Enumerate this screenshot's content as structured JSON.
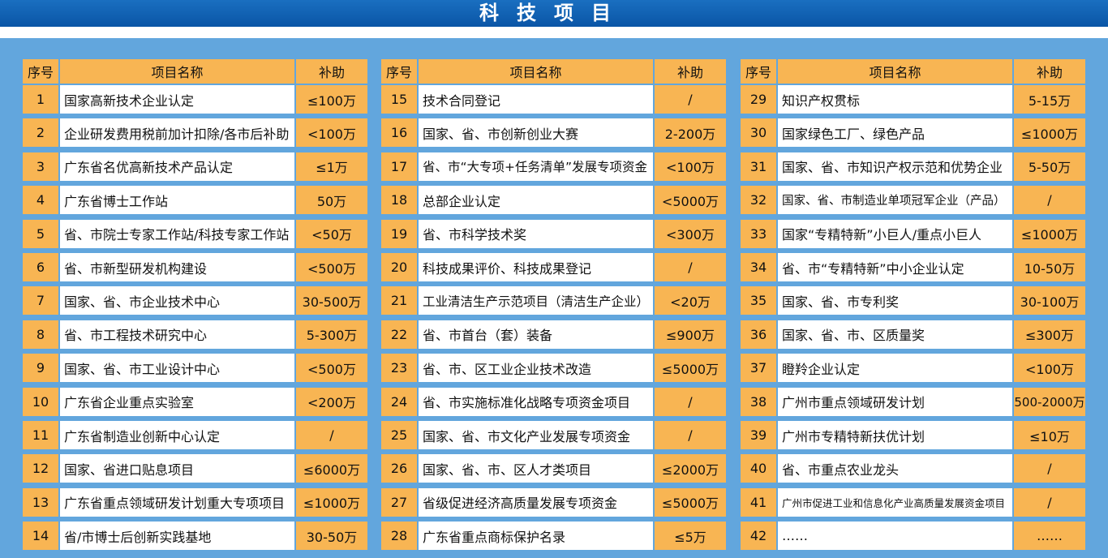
{
  "header": {
    "title": "科技项目"
  },
  "tables": [
    {
      "header": [
        "序号",
        "项目名称",
        "补助"
      ],
      "rows": [
        [
          "1",
          "国家高新技术企业认定",
          "≤100万"
        ],
        [
          "2",
          "企业研发费用税前加计扣除/各市后补助",
          "<100万"
        ],
        [
          "3",
          "广东省名优高新技术产品认定",
          "≤1万"
        ],
        [
          "4",
          "广东省博士工作站",
          "50万"
        ],
        [
          "5",
          "省、市院士专家工作站/科技专家工作站",
          "<50万"
        ],
        [
          "6",
          "省、市新型研发机构建设",
          "<500万"
        ],
        [
          "7",
          "国家、省、市企业技术中心",
          "30-500万"
        ],
        [
          "8",
          "省、市工程技术研究中心",
          "5-300万"
        ],
        [
          "9",
          "国家、省、市工业设计中心",
          "<500万"
        ],
        [
          "10",
          "广东省企业重点实验室",
          "<200万"
        ],
        [
          "11",
          "广东省制造业创新中心认定",
          "/"
        ],
        [
          "12",
          "国家、省进口贴息项目",
          "≤6000万"
        ],
        [
          "13",
          "广东省重点领域研发计划重大专项项目",
          "≤1000万"
        ],
        [
          "14",
          "省/市博士后创新实践基地",
          "30-50万"
        ]
      ]
    },
    {
      "header": [
        "序号",
        "项目名称",
        "补助"
      ],
      "rows": [
        [
          "15",
          "技术合同登记",
          "/"
        ],
        [
          "16",
          "国家、省、市创新创业大赛",
          "2-200万"
        ],
        [
          "17",
          "省、市“大专项+任务清单”发展专项资金",
          "<100万"
        ],
        [
          "18",
          "总部企业认定",
          "<5000万"
        ],
        [
          "19",
          "省、市科学技术奖",
          "<300万"
        ],
        [
          "20",
          "科技成果评价、科技成果登记",
          "/"
        ],
        [
          "21",
          "工业清洁生产示范项目（清洁生产企业）",
          "<20万"
        ],
        [
          "22",
          "省、市首台（套）装备",
          "≤900万"
        ],
        [
          "23",
          "省、市、区工业企业技术改造",
          "≤5000万"
        ],
        [
          "24",
          "省、市实施标准化战略专项资金项目",
          "/"
        ],
        [
          "25",
          "国家、省、市文化产业发展专项资金",
          "/"
        ],
        [
          "26",
          "国家、省、市、区人才类项目",
          "≤2000万"
        ],
        [
          "27",
          "省级促进经济高质量发展专项资金",
          "≤5000万"
        ],
        [
          "28",
          "广东省重点商标保护名录",
          "≤5万"
        ]
      ]
    },
    {
      "header": [
        "序号",
        "项目名称",
        "补助"
      ],
      "rows": [
        [
          "29",
          "知识产权贯标",
          "5-15万"
        ],
        [
          "30",
          "国家绿色工厂、绿色产品",
          "≤1000万"
        ],
        [
          "31",
          "国家、省、市知识产权示范和优势企业",
          "5-50万"
        ],
        [
          "32",
          "国家、省、市制造业单项冠军企业（产品）",
          "/"
        ],
        [
          "33",
          "国家“专精特新”小巨人/重点小巨人",
          "≤1000万"
        ],
        [
          "34",
          "省、市“专精特新”中小企业认定",
          "10-50万"
        ],
        [
          "35",
          "国家、省、市专利奖",
          "30-100万"
        ],
        [
          "36",
          "国家、省、市、区质量奖",
          "≤300万"
        ],
        [
          "37",
          "瞪羚企业认定",
          "<100万"
        ],
        [
          "38",
          "广州市重点领域研发计划",
          "500-2000万"
        ],
        [
          "39",
          "广州市专精特新扶优计划",
          "≤10万"
        ],
        [
          "40",
          "省、市重点农业龙头",
          "/"
        ],
        [
          "41",
          "广州市促进工业和信息化产业高质量发展资金项目",
          "/"
        ],
        [
          "42",
          "……",
          "……"
        ]
      ]
    }
  ]
}
